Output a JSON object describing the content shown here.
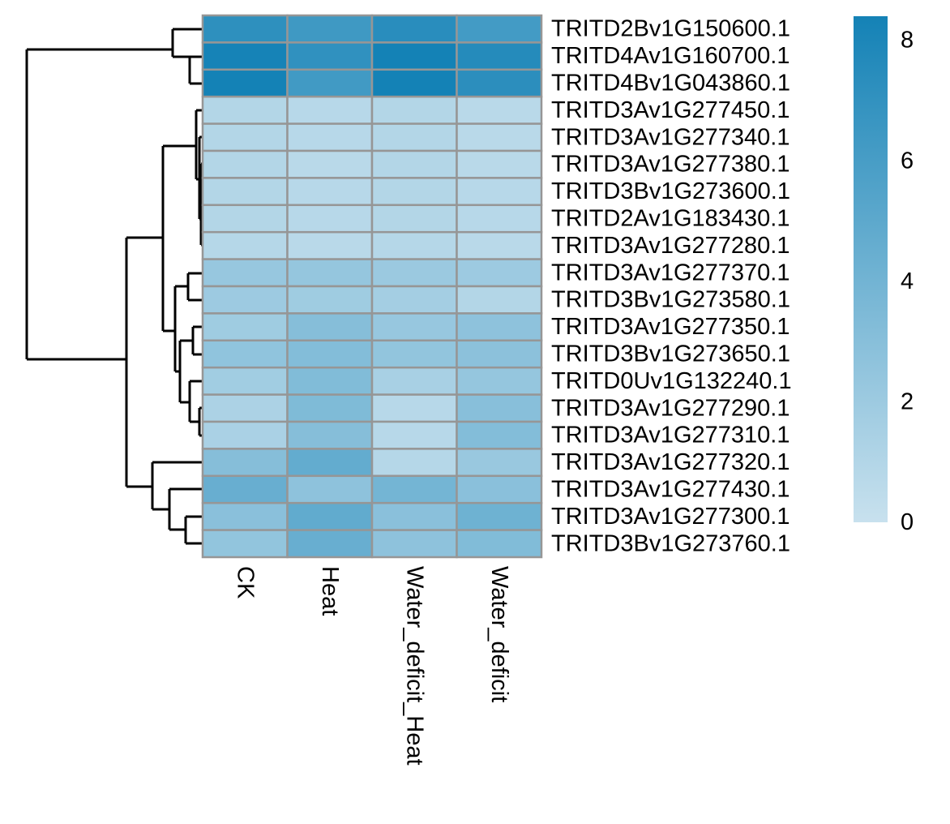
{
  "chart_data": {
    "type": "heatmap",
    "title": "",
    "xlabel": "",
    "ylabel": "",
    "columns": [
      "CK",
      "Heat",
      "Water_deficit_Heat",
      "Water_deficit"
    ],
    "rows": [
      "TRITD2Bv1G150600.1",
      "TRITD4Av1G160700.1",
      "TRITD4Bv1G043860.1",
      "TRITD3Av1G277450.1",
      "TRITD3Av1G277340.1",
      "TRITD3Av1G277380.1",
      "TRITD3Bv1G273600.1",
      "TRITD2Av1G183430.1",
      "TRITD3Av1G277280.1",
      "TRITD3Av1G277370.1",
      "TRITD3Bv1G273580.1",
      "TRITD3Av1G277350.1",
      "TRITD3Bv1G273650.1",
      "TRITD0Uv1G132240.1",
      "TRITD3Av1G277290.1",
      "TRITD3Av1G277310.1",
      "TRITD3Av1G277320.1",
      "TRITD3Av1G277430.1",
      "TRITD3Av1G277300.1",
      "TRITD3Bv1G273760.1"
    ],
    "values": [
      [
        7.2,
        6.4,
        7.4,
        6.2
      ],
      [
        8.3,
        7.1,
        8.4,
        7.6
      ],
      [
        8.4,
        6.3,
        8.5,
        7.3
      ],
      [
        1.0,
        0.8,
        1.0,
        0.7
      ],
      [
        1.0,
        0.8,
        1.0,
        0.7
      ],
      [
        1.0,
        0.7,
        1.0,
        0.7
      ],
      [
        1.0,
        0.8,
        1.0,
        0.8
      ],
      [
        1.0,
        0.8,
        1.0,
        0.8
      ],
      [
        0.9,
        0.7,
        0.9,
        0.7
      ],
      [
        2.3,
        2.4,
        2.1,
        2.0
      ],
      [
        2.0,
        1.9,
        1.7,
        1.0
      ],
      [
        1.9,
        3.1,
        2.3,
        2.7
      ],
      [
        2.6,
        3.2,
        2.5,
        2.8
      ],
      [
        1.8,
        3.3,
        1.5,
        2.4
      ],
      [
        1.3,
        3.4,
        0.8,
        3.0
      ],
      [
        1.4,
        3.1,
        0.8,
        3.2
      ],
      [
        3.1,
        4.7,
        0.9,
        2.2
      ],
      [
        4.5,
        2.7,
        3.9,
        2.9
      ],
      [
        2.9,
        4.8,
        2.9,
        4.2
      ],
      [
        2.5,
        4.5,
        2.7,
        3.3
      ]
    ],
    "color_scale": {
      "min": 0,
      "max": 8.4,
      "low_color": "#c8e1ee",
      "high_color": "#1482b6",
      "ticks": [
        "0",
        "2",
        "4",
        "6",
        "8"
      ],
      "tick_values": [
        0,
        2,
        4,
        6,
        8
      ]
    },
    "cell_border_color": "#969696",
    "row_dendrogram": true,
    "legend": "right"
  }
}
